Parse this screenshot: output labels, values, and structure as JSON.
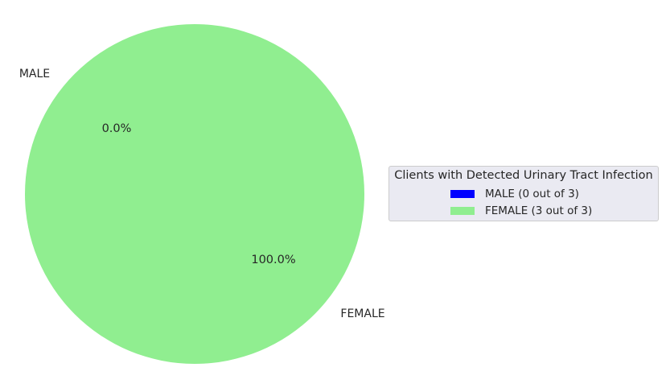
{
  "chart_data": {
    "type": "pie",
    "categories": [
      "MALE",
      "FEMALE"
    ],
    "values": [
      0,
      3
    ],
    "percent_labels": [
      "0.0%",
      "100.0%"
    ],
    "colors": [
      "#0000ff",
      "#90ee90"
    ],
    "title": "",
    "legend": {
      "title": "Clients with Detected Urinary Tract Infection",
      "entries": [
        "MALE (0 out of 3)",
        "FEMALE (3 out of 3)"
      ],
      "placement": "center-right"
    }
  }
}
